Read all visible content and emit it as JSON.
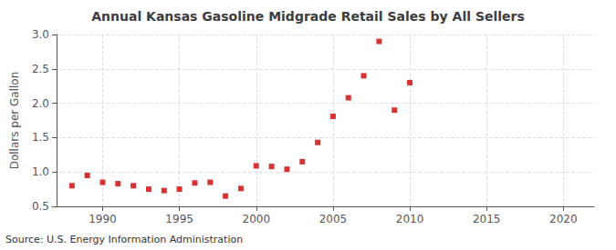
{
  "chart_data": {
    "type": "scatter",
    "title": "Annual Kansas Gasoline Midgrade Retail Sales by All Sellers",
    "ylabel": "Dollars per Gallon",
    "annotation": "Source: U.S. Energy Information Administration",
    "x": [
      1988,
      1989,
      1990,
      1991,
      1992,
      1993,
      1994,
      1995,
      1996,
      1997,
      1998,
      1999,
      2000,
      2001,
      2002,
      2003,
      2004,
      2005,
      2006,
      2007,
      2008,
      2009,
      2010
    ],
    "values": [
      0.8,
      0.95,
      0.85,
      0.83,
      0.8,
      0.75,
      0.73,
      0.75,
      0.84,
      0.85,
      0.65,
      0.76,
      1.09,
      1.08,
      1.04,
      1.15,
      1.43,
      1.81,
      2.08,
      2.4,
      2.9,
      1.9,
      2.3
    ],
    "color": "#cc0000",
    "marker": "square",
    "xlim": [
      1987,
      2022
    ],
    "xticks": [
      1990,
      1995,
      2000,
      2005,
      2010,
      2015,
      2020
    ],
    "ylim": [
      0.5,
      3.0
    ],
    "yticks": [
      0.5,
      {
        "value": 1.0,
        "label": "1.0"
      },
      1.5,
      {
        "value": 2.0,
        "label": "2.0"
      },
      2.5,
      {
        "value": 3.0,
        "label": "3.0"
      }
    ],
    "grid": true
  }
}
